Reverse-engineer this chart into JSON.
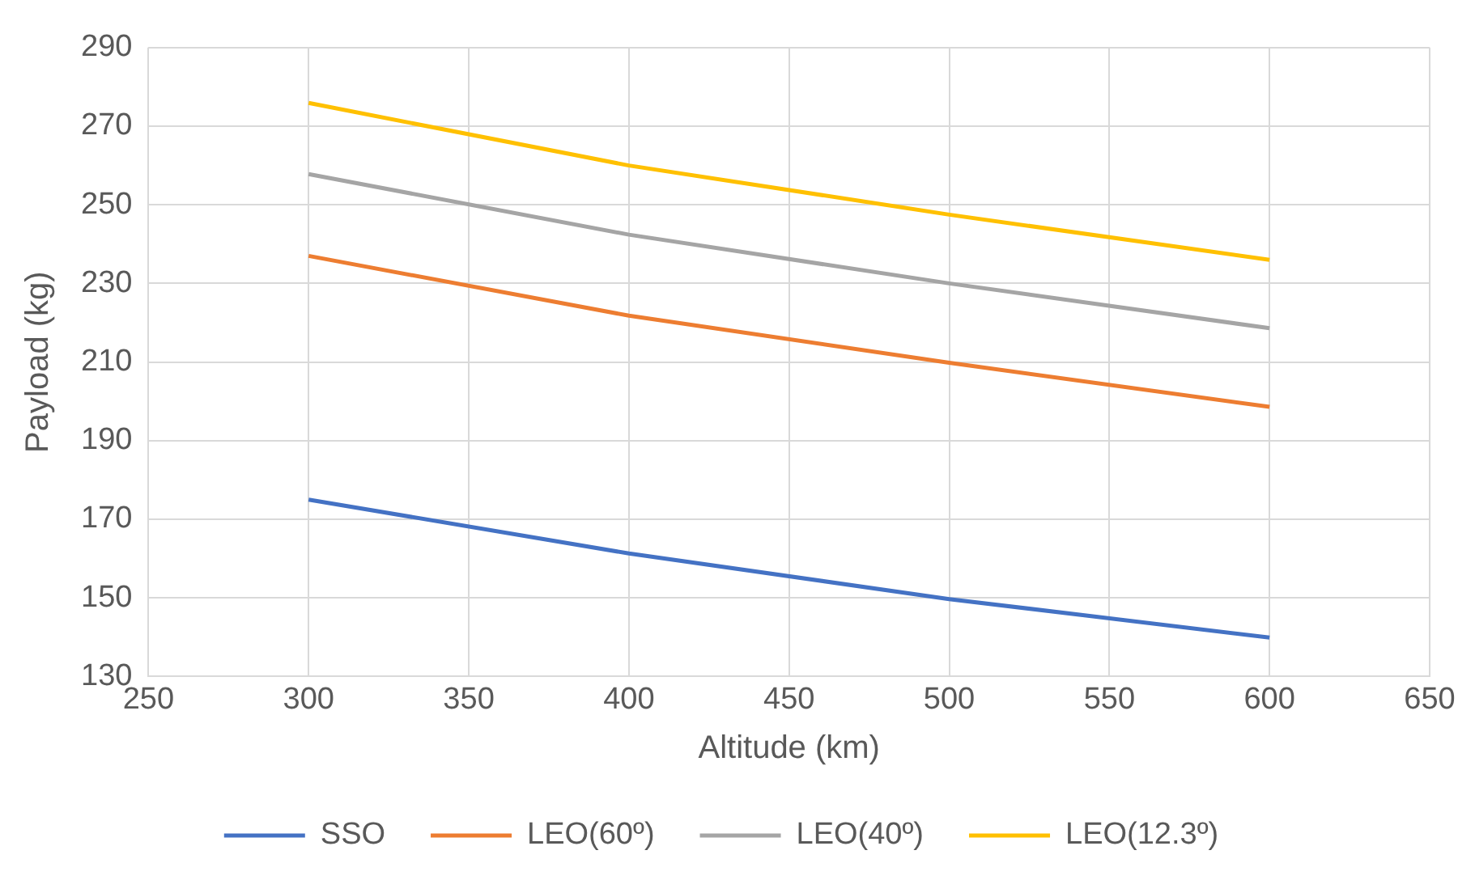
{
  "chart_data": {
    "type": "line",
    "xlabel": "Altitude (km)",
    "ylabel": "Payload (kg)",
    "x": [
      300,
      400,
      500,
      600
    ],
    "series": [
      {
        "name": "SSO",
        "color": "#4472c4",
        "values": [
          175,
          161.3,
          149.7,
          139.9
        ]
      },
      {
        "name": "LEO(60º)",
        "color": "#ed7d31",
        "values": [
          237,
          221.8,
          209.8,
          198.6
        ]
      },
      {
        "name": "LEO(40º)",
        "color": "#a5a5a5",
        "values": [
          257.8,
          242.4,
          230,
          218.6
        ]
      },
      {
        "name": "LEO(12.3º)",
        "color": "#ffc000",
        "values": [
          275.9,
          260,
          247.5,
          236
        ]
      }
    ],
    "xlim": [
      250,
      650
    ],
    "xticks": [
      250,
      300,
      350,
      400,
      450,
      500,
      550,
      600,
      650
    ],
    "ylim": [
      130,
      290
    ],
    "yticks": [
      130,
      150,
      170,
      190,
      210,
      230,
      250,
      270,
      290
    ],
    "grid": true,
    "legend": "bottom",
    "marker": "none",
    "line_style": "solid"
  }
}
